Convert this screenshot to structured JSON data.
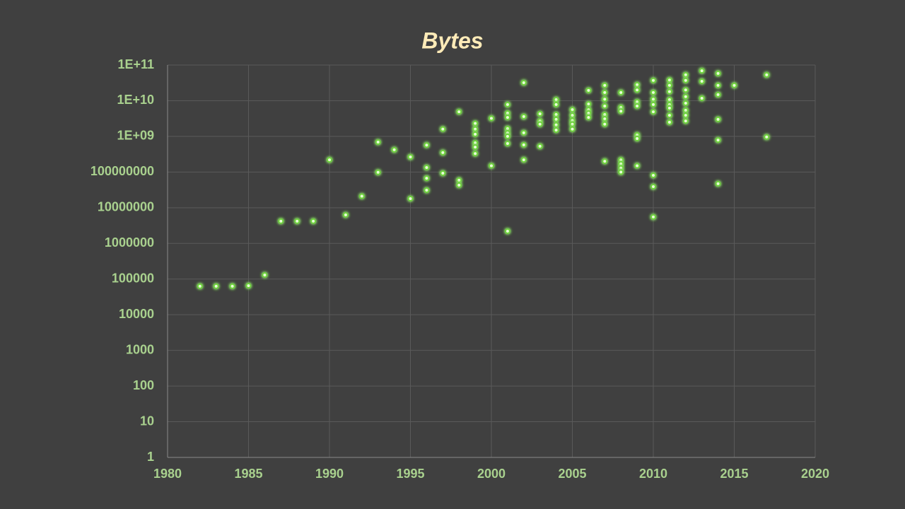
{
  "chart_data": {
    "type": "scatter",
    "title": "Bytes",
    "color": "#6dd13a",
    "x": [
      1982,
      1983,
      1984,
      1985,
      1986,
      1987,
      1988,
      1989,
      1990,
      1991,
      1992,
      1993,
      1993,
      1994,
      1995,
      1995,
      1996,
      1996,
      1996,
      1996,
      1997,
      1997,
      1997,
      1998,
      1998,
      1998,
      1999,
      1999,
      1999,
      1999,
      1999,
      1999,
      2000,
      2000,
      2001,
      2001,
      2001,
      2001,
      2001,
      2001,
      2001,
      2001,
      2002,
      2002,
      2002,
      2002,
      2002,
      2003,
      2003,
      2003,
      2003,
      2004,
      2004,
      2004,
      2004,
      2004,
      2004,
      2005,
      2005,
      2005,
      2005,
      2005,
      2006,
      2006,
      2006,
      2006,
      2006,
      2007,
      2007,
      2007,
      2007,
      2007,
      2007,
      2007,
      2007,
      2008,
      2008,
      2008,
      2008,
      2008,
      2008,
      2008,
      2009,
      2009,
      2009,
      2009,
      2009,
      2009,
      2009,
      2010,
      2010,
      2010,
      2010,
      2010,
      2010,
      2010,
      2010,
      2011,
      2011,
      2011,
      2011,
      2011,
      2011,
      2011,
      2011,
      2012,
      2012,
      2012,
      2012,
      2012,
      2012,
      2012,
      2012,
      2013,
      2013,
      2013,
      2014,
      2014,
      2014,
      2014,
      2014,
      2014,
      2015,
      2017,
      2017
    ],
    "values": [
      63000,
      63000,
      63000,
      65000,
      130000,
      4200000,
      4200000,
      4200000,
      220000000,
      6300000,
      21000000,
      690000000,
      98000000,
      420000000,
      265000000,
      18000000,
      570000000,
      134000000,
      67000000,
      31000000,
      1600000000,
      350000000,
      93000000,
      4900000000,
      59000000,
      43000000,
      2300000000,
      1600000000,
      1150000000,
      660000000,
      500000000,
      330000000,
      3200000000,
      150000000,
      7800000000,
      4500000000,
      3400000000,
      1650000000,
      1250000000,
      1000000000,
      630000000,
      2200000,
      32000000000,
      3600000000,
      1260000000,
      580000000,
      220000000,
      4300000000,
      2700000000,
      2200000000,
      530000000,
      10700000000,
      7800000000,
      4100000000,
      3000000000,
      2100000000,
      1500000000,
      5600000000,
      3900000000,
      2800000000,
      2200000000,
      1600000000,
      19500000000,
      8100000000,
      5600000000,
      4500000000,
      3400000000,
      27000000000,
      17000000000,
      11000000000,
      7100000000,
      4100000000,
      3100000000,
      2200000000,
      200000000,
      17000000000,
      6500000000,
      5100000000,
      220000000,
      170000000,
      130000000,
      100000000,
      28000000000,
      20000000000,
      9300000000,
      7100000000,
      1100000000,
      870000000,
      150000000,
      37000000000,
      17000000000,
      11000000000,
      7800000000,
      4900000000,
      81000000,
      39000000,
      5500000,
      38000000000,
      27000000000,
      18000000000,
      10700000000,
      7800000000,
      6200000000,
      3900000000,
      2500000000,
      53000000000,
      37000000000,
      20000000000,
      13000000000,
      8500000000,
      5400000000,
      3900000000,
      2700000000,
      69000000000,
      35000000000,
      11700000000,
      58000000000,
      27000000000,
      14800000000,
      3000000000,
      790000000,
      47000000,
      27000000000,
      53000000000,
      960000000
    ],
    "xlim": [
      1980,
      2020
    ],
    "xticks": [
      1980,
      1985,
      1990,
      1995,
      2000,
      2005,
      2010,
      2015,
      2020
    ],
    "ylim": [
      1,
      100000000000
    ],
    "yscale": "log",
    "yticks": [
      1,
      10,
      100,
      1000,
      10000,
      100000,
      1000000,
      10000000,
      100000000,
      {
        "value": 1000000000,
        "label": "1E+09"
      },
      {
        "value": 10000000000,
        "label": "1E+10"
      },
      {
        "value": 100000000000,
        "label": "1E+11"
      }
    ],
    "grid": true
  }
}
